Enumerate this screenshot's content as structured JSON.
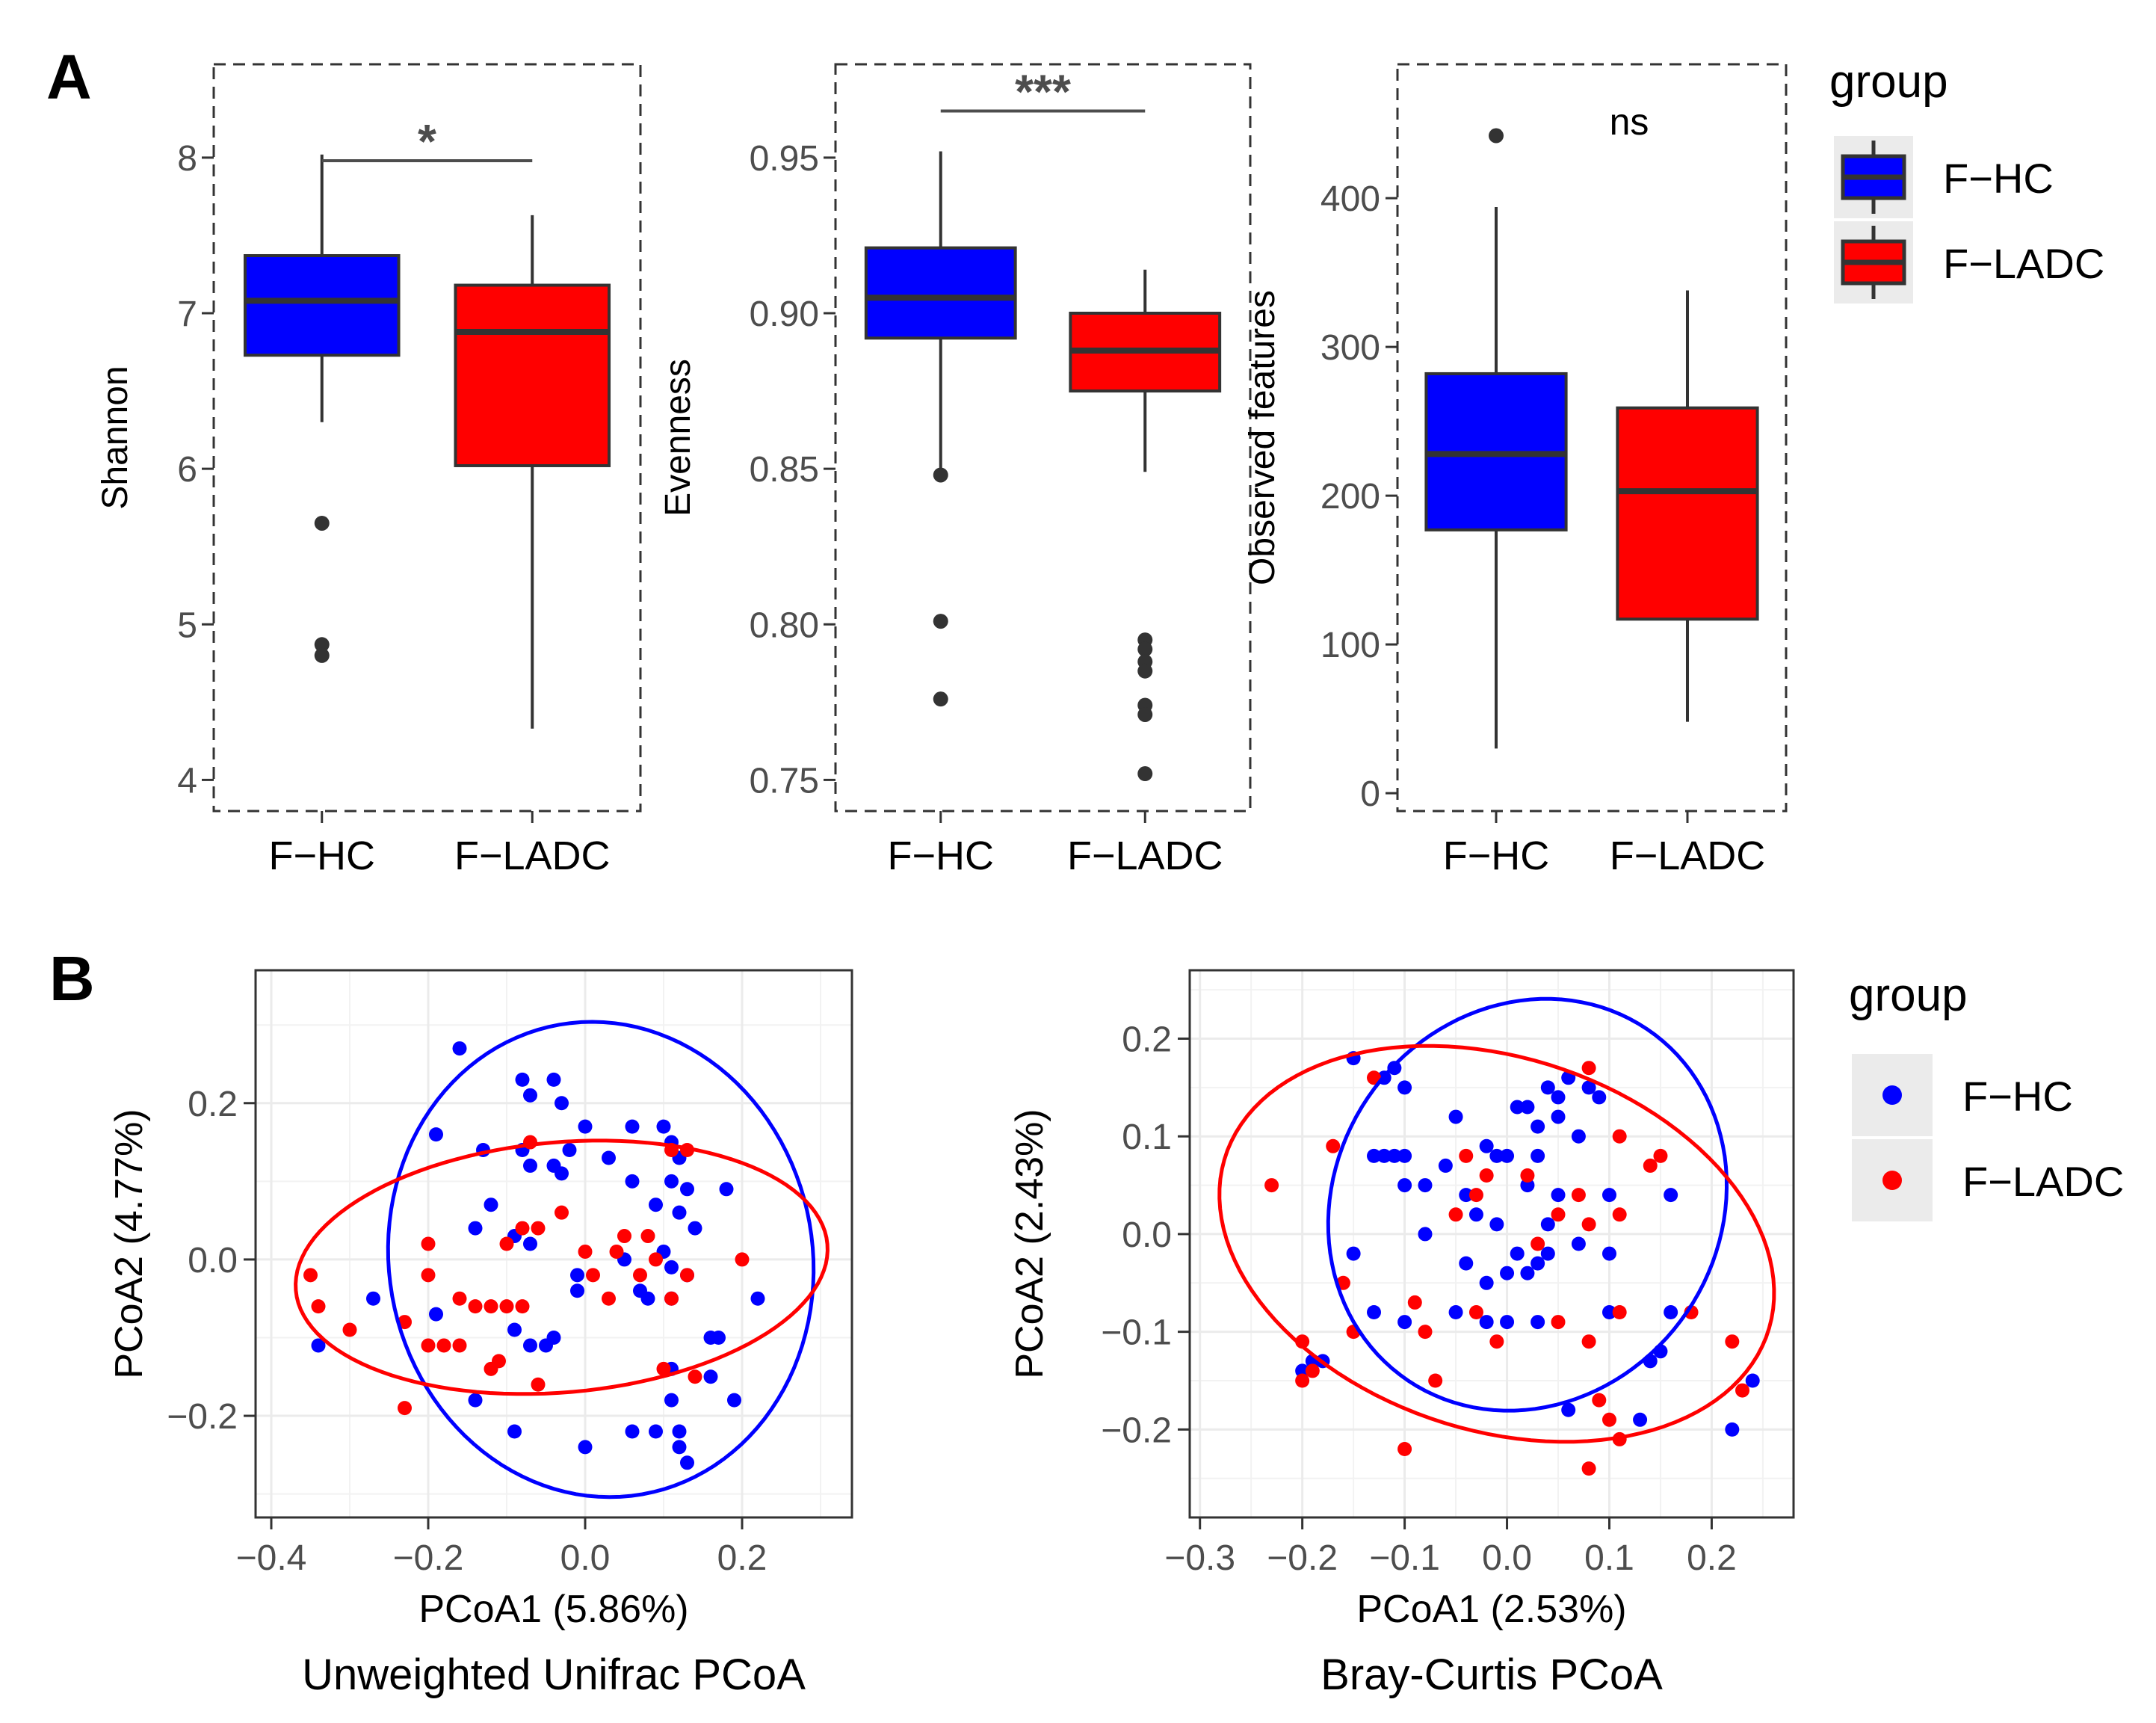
{
  "figure": {
    "panel_a_label": "A",
    "panel_b_label": "B",
    "legend_a": {
      "title": "group",
      "entries": [
        "F−HC",
        "F−LADC"
      ]
    },
    "legend_b": {
      "title": "group",
      "entries": [
        "F−HC",
        "F−LADC"
      ]
    }
  },
  "colors": {
    "hc": "#0000ff",
    "ladc": "#ff0000",
    "box_edge": "#333333",
    "frame": "#333333"
  },
  "chart_data": [
    {
      "id": "shannon",
      "type": "box",
      "ylabel": "Shannon",
      "categories": [
        "F−HC",
        "F−LADC"
      ],
      "ylim": [
        3.8,
        8.6
      ],
      "yticks": [
        4,
        5,
        6,
        7,
        8
      ],
      "tick_labels": [
        "4",
        "5",
        "6",
        "7",
        "8"
      ],
      "boxes": [
        {
          "group": "F−HC",
          "q1": 6.73,
          "median": 7.08,
          "q3": 7.37,
          "whisker_low": 6.3,
          "whisker_high": 8.02,
          "outliers": [
            5.65,
            4.87,
            4.8
          ]
        },
        {
          "group": "F−LADC",
          "q1": 6.02,
          "median": 6.88,
          "q3": 7.18,
          "whisker_low": 4.33,
          "whisker_high": 7.63,
          "outliers": []
        }
      ],
      "significance": "*",
      "bracket_y": 7.98
    },
    {
      "id": "evenness",
      "type": "box",
      "ylabel": "Evenness",
      "categories": [
        "F−HC",
        "F−LADC"
      ],
      "ylim": [
        0.74,
        0.98
      ],
      "yticks": [
        0.75,
        0.8,
        0.85,
        0.9,
        0.95
      ],
      "tick_labels": [
        "0.75",
        "0.80",
        "0.85",
        "0.90",
        "0.95"
      ],
      "boxes": [
        {
          "group": "F−HC",
          "q1": 0.892,
          "median": 0.905,
          "q3": 0.921,
          "whisker_low": 0.85,
          "whisker_high": 0.952,
          "outliers": [
            0.848,
            0.801,
            0.776
          ]
        },
        {
          "group": "F−LADC",
          "q1": 0.875,
          "median": 0.888,
          "q3": 0.9,
          "whisker_low": 0.849,
          "whisker_high": 0.914,
          "outliers": [
            0.795,
            0.792,
            0.788,
            0.785,
            0.774,
            0.771,
            0.752
          ]
        }
      ],
      "significance": "***",
      "bracket_y": 0.965
    },
    {
      "id": "observed",
      "type": "box",
      "ylabel": "Observed features",
      "categories": [
        "F−HC",
        "F−LADC"
      ],
      "ylim": [
        -12,
        490
      ],
      "yticks": [
        0,
        100,
        200,
        300,
        400
      ],
      "tick_labels": [
        "0",
        "100",
        "200",
        "300",
        "400"
      ],
      "boxes": [
        {
          "group": "F−HC",
          "q1": 177,
          "median": 228,
          "q3": 282,
          "whisker_low": 30,
          "whisker_high": 394,
          "outliers": [
            442
          ]
        },
        {
          "group": "F−LADC",
          "q1": 117,
          "median": 203,
          "q3": 259,
          "whisker_low": 48,
          "whisker_high": 338,
          "outliers": []
        }
      ],
      "significance": "ns",
      "bracket_y": null
    },
    {
      "id": "unifrac",
      "type": "scatter",
      "title": "Unweighted Unifrac PCoA",
      "xlabel": "PCoA1 (5.86%)",
      "ylabel": "PCoA2 (4.77%)",
      "xlim": [
        -0.42,
        0.34
      ],
      "ylim": [
        -0.33,
        0.37
      ],
      "xticks": [
        -0.4,
        -0.2,
        0,
        0.2
      ],
      "xtick_labels": [
        "−0.4",
        "−0.2",
        "0.0",
        "0.2"
      ],
      "yticks": [
        -0.2,
        0,
        0.2
      ],
      "ytick_labels": [
        "−0.2",
        "0.0",
        "0.2"
      ],
      "ellipses": [
        {
          "group": "F−HC",
          "center": [
            0.02,
            0.0
          ],
          "semi_x": 0.27,
          "semi_y": 0.305,
          "angle_deg": 10
        },
        {
          "group": "F−LADC",
          "center": [
            -0.03,
            -0.01
          ],
          "semi_x": 0.34,
          "semi_y": 0.16,
          "angle_deg": 5
        }
      ],
      "series": [
        {
          "name": "F−HC",
          "points": [
            [
              -0.16,
              0.27
            ],
            [
              -0.08,
              0.23
            ],
            [
              -0.07,
              0.21
            ],
            [
              -0.04,
              0.23
            ],
            [
              -0.03,
              0.2
            ],
            [
              0.0,
              0.17
            ],
            [
              0.06,
              0.17
            ],
            [
              0.1,
              0.17
            ],
            [
              0.11,
              0.15
            ],
            [
              -0.19,
              0.16
            ],
            [
              -0.13,
              0.14
            ],
            [
              -0.08,
              0.14
            ],
            [
              -0.02,
              0.14
            ],
            [
              0.03,
              0.13
            ],
            [
              0.12,
              0.13
            ],
            [
              -0.07,
              0.12
            ],
            [
              -0.04,
              0.12
            ],
            [
              -0.03,
              0.11
            ],
            [
              0.06,
              0.1
            ],
            [
              0.11,
              0.1
            ],
            [
              0.13,
              0.09
            ],
            [
              0.18,
              0.09
            ],
            [
              -0.12,
              0.07
            ],
            [
              0.09,
              0.07
            ],
            [
              0.12,
              0.06
            ],
            [
              -0.14,
              0.04
            ],
            [
              -0.09,
              0.03
            ],
            [
              0.14,
              0.04
            ],
            [
              -0.07,
              0.02
            ],
            [
              0.1,
              0.01
            ],
            [
              0.05,
              0.0
            ],
            [
              -0.01,
              -0.02
            ],
            [
              0.11,
              -0.01
            ],
            [
              0.13,
              -0.02
            ],
            [
              -0.01,
              -0.04
            ],
            [
              0.07,
              -0.04
            ],
            [
              0.08,
              -0.05
            ],
            [
              0.11,
              -0.05
            ],
            [
              0.22,
              -0.05
            ],
            [
              -0.27,
              -0.05
            ],
            [
              -0.19,
              -0.07
            ],
            [
              -0.09,
              -0.09
            ],
            [
              -0.07,
              -0.11
            ],
            [
              -0.05,
              -0.11
            ],
            [
              -0.04,
              -0.1
            ],
            [
              0.16,
              -0.1
            ],
            [
              0.17,
              -0.1
            ],
            [
              -0.34,
              -0.11
            ],
            [
              0.11,
              -0.14
            ],
            [
              0.16,
              -0.15
            ],
            [
              -0.14,
              -0.18
            ],
            [
              0.11,
              -0.18
            ],
            [
              0.19,
              -0.18
            ],
            [
              -0.09,
              -0.22
            ],
            [
              0.06,
              -0.22
            ],
            [
              0.09,
              -0.22
            ],
            [
              0.12,
              -0.22
            ],
            [
              0.0,
              -0.24
            ],
            [
              0.12,
              -0.24
            ],
            [
              0.13,
              -0.26
            ]
          ]
        },
        {
          "name": "F−LADC",
          "points": [
            [
              -0.07,
              0.15
            ],
            [
              0.11,
              0.14
            ],
            [
              0.13,
              0.14
            ],
            [
              -0.03,
              0.06
            ],
            [
              -0.08,
              0.04
            ],
            [
              -0.06,
              0.04
            ],
            [
              -0.2,
              0.02
            ],
            [
              -0.1,
              0.02
            ],
            [
              0.05,
              0.03
            ],
            [
              0.08,
              0.03
            ],
            [
              -0.35,
              -0.02
            ],
            [
              0.0,
              0.01
            ],
            [
              0.04,
              0.01
            ],
            [
              0.09,
              0.0
            ],
            [
              0.2,
              0.0
            ],
            [
              -0.2,
              -0.02
            ],
            [
              0.01,
              -0.02
            ],
            [
              0.07,
              -0.02
            ],
            [
              0.13,
              -0.02
            ],
            [
              -0.16,
              -0.05
            ],
            [
              -0.14,
              -0.06
            ],
            [
              -0.12,
              -0.06
            ],
            [
              -0.1,
              -0.06
            ],
            [
              0.03,
              -0.05
            ],
            [
              0.11,
              -0.05
            ],
            [
              -0.34,
              -0.06
            ],
            [
              -0.08,
              -0.06
            ],
            [
              -0.23,
              -0.08
            ],
            [
              -0.3,
              -0.09
            ],
            [
              -0.2,
              -0.11
            ],
            [
              -0.18,
              -0.11
            ],
            [
              -0.16,
              -0.11
            ],
            [
              -0.12,
              -0.14
            ],
            [
              -0.11,
              -0.13
            ],
            [
              0.1,
              -0.14
            ],
            [
              -0.06,
              -0.16
            ],
            [
              0.14,
              -0.15
            ],
            [
              -0.23,
              -0.19
            ]
          ]
        }
      ]
    },
    {
      "id": "braycurtis",
      "type": "scatter",
      "title": "Bray-Curtis PCoA",
      "xlabel": "PCoA1 (2.53%)",
      "ylabel": "PCoA2 (2.43%)",
      "xlim": [
        -0.31,
        0.28
      ],
      "ylim": [
        -0.29,
        0.27
      ],
      "xticks": [
        -0.3,
        -0.2,
        -0.1,
        0,
        0.1,
        0.2
      ],
      "xtick_labels": [
        "−0.3",
        "−0.2",
        "−0.1",
        "0.0",
        "0.1",
        "0.2"
      ],
      "yticks": [
        -0.2,
        -0.1,
        0,
        0.1,
        0.2
      ],
      "ytick_labels": [
        "−0.2",
        "−0.1",
        "0.0",
        "0.1",
        "0.2"
      ],
      "ellipses": [
        {
          "group": "F−HC",
          "center": [
            0.02,
            0.03
          ],
          "semi_x": 0.19,
          "semi_y": 0.215,
          "angle_deg": -25
        },
        {
          "group": "F−LADC",
          "center": [
            -0.01,
            -0.01
          ],
          "semi_x": 0.28,
          "semi_y": 0.19,
          "angle_deg": -20
        }
      ],
      "series": [
        {
          "name": "F−HC",
          "points": [
            [
              -0.15,
              0.18
            ],
            [
              -0.11,
              0.17
            ],
            [
              -0.1,
              0.15
            ],
            [
              -0.12,
              0.16
            ],
            [
              0.02,
              0.13
            ],
            [
              0.05,
              0.14
            ],
            [
              0.06,
              0.16
            ],
            [
              0.08,
              0.15
            ],
            [
              0.04,
              0.15
            ],
            [
              0.01,
              0.13
            ],
            [
              -0.05,
              0.12
            ],
            [
              0.09,
              0.14
            ],
            [
              0.05,
              0.12
            ],
            [
              0.03,
              0.11
            ],
            [
              -0.02,
              0.09
            ],
            [
              0.0,
              0.08
            ],
            [
              0.03,
              0.08
            ],
            [
              -0.01,
              0.08
            ],
            [
              0.07,
              0.1
            ],
            [
              -0.13,
              0.08
            ],
            [
              -0.12,
              0.08
            ],
            [
              -0.11,
              0.08
            ],
            [
              -0.1,
              0.08
            ],
            [
              -0.06,
              0.07
            ],
            [
              -0.1,
              0.05
            ],
            [
              -0.08,
              0.05
            ],
            [
              -0.04,
              0.04
            ],
            [
              0.02,
              0.05
            ],
            [
              0.05,
              0.04
            ],
            [
              0.1,
              0.04
            ],
            [
              0.16,
              0.04
            ],
            [
              -0.03,
              0.02
            ],
            [
              -0.01,
              0.01
            ],
            [
              0.04,
              0.01
            ],
            [
              0.01,
              -0.02
            ],
            [
              0.07,
              -0.01
            ],
            [
              -0.08,
              0.0
            ],
            [
              -0.15,
              -0.02
            ],
            [
              0.04,
              -0.02
            ],
            [
              -0.04,
              -0.03
            ],
            [
              0.03,
              -0.03
            ],
            [
              0.1,
              -0.02
            ],
            [
              -0.02,
              -0.05
            ],
            [
              0.0,
              -0.04
            ],
            [
              0.02,
              -0.04
            ],
            [
              -0.13,
              -0.08
            ],
            [
              -0.05,
              -0.08
            ],
            [
              0.0,
              -0.09
            ],
            [
              0.03,
              -0.09
            ],
            [
              0.1,
              -0.08
            ],
            [
              0.16,
              -0.08
            ],
            [
              -0.1,
              -0.09
            ],
            [
              -0.02,
              -0.09
            ],
            [
              0.14,
              -0.13
            ],
            [
              0.15,
              -0.12
            ],
            [
              -0.19,
              -0.13
            ],
            [
              -0.2,
              -0.14
            ],
            [
              -0.18,
              -0.13
            ],
            [
              0.06,
              -0.18
            ],
            [
              0.13,
              -0.19
            ],
            [
              0.24,
              -0.15
            ],
            [
              0.22,
              -0.2
            ]
          ]
        },
        {
          "name": "F−LADC",
          "points": [
            [
              0.08,
              0.17
            ],
            [
              -0.13,
              0.16
            ],
            [
              -0.17,
              0.09
            ],
            [
              0.11,
              0.1
            ],
            [
              0.15,
              0.08
            ],
            [
              -0.04,
              0.08
            ],
            [
              -0.02,
              0.06
            ],
            [
              0.02,
              0.06
            ],
            [
              0.14,
              0.07
            ],
            [
              -0.23,
              0.05
            ],
            [
              -0.03,
              0.04
            ],
            [
              -0.05,
              0.02
            ],
            [
              0.07,
              0.04
            ],
            [
              0.05,
              0.02
            ],
            [
              0.11,
              0.02
            ],
            [
              0.08,
              0.01
            ],
            [
              0.03,
              -0.01
            ],
            [
              -0.16,
              -0.05
            ],
            [
              -0.09,
              -0.07
            ],
            [
              -0.03,
              -0.08
            ],
            [
              0.05,
              -0.09
            ],
            [
              0.11,
              -0.08
            ],
            [
              0.18,
              -0.08
            ],
            [
              -0.15,
              -0.1
            ],
            [
              -0.08,
              -0.1
            ],
            [
              -0.01,
              -0.11
            ],
            [
              -0.2,
              -0.11
            ],
            [
              0.08,
              -0.11
            ],
            [
              0.22,
              -0.11
            ],
            [
              -0.19,
              -0.14
            ],
            [
              -0.07,
              -0.15
            ],
            [
              0.09,
              -0.17
            ],
            [
              -0.2,
              -0.15
            ],
            [
              0.1,
              -0.19
            ],
            [
              0.11,
              -0.21
            ],
            [
              0.23,
              -0.16
            ],
            [
              -0.1,
              -0.22
            ],
            [
              0.08,
              -0.24
            ]
          ]
        }
      ]
    }
  ]
}
